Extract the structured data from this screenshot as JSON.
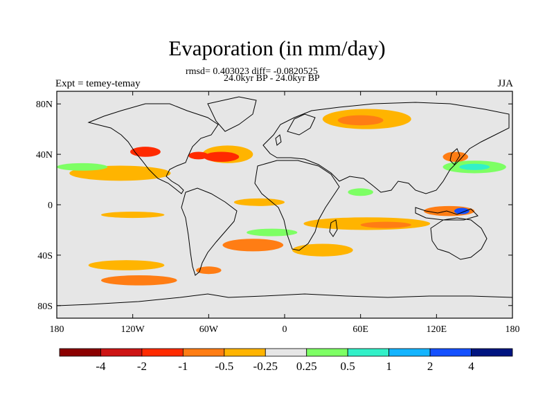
{
  "title": "Evaporation (in mm/day)",
  "stats_line": "rmsd= 0.403023 diff= -0.0820525",
  "period_line": "24.0kyr BP - 24.0kyr BP",
  "left_label": "Expt = temey-temay",
  "right_label": "JJA",
  "map": {
    "projection": "cylindrical equidistant",
    "lon_range": [
      -180,
      180
    ],
    "lat_range": [
      -90,
      90
    ],
    "background": "#e6e6e6",
    "coastline_color": "#000000",
    "lon_ticks": [
      "180",
      "120W",
      "60W",
      "0",
      "60E",
      "120E",
      "180"
    ],
    "lat_ticks": [
      "80N",
      "40N",
      "0",
      "40S",
      "80S"
    ]
  },
  "colorbar": {
    "colors": [
      "#8b0000",
      "#cd1414",
      "#ff2a00",
      "#ff7d14",
      "#ffb400",
      "#e6e6e6",
      "#7dff64",
      "#32f0c8",
      "#14b4ff",
      "#1450ff",
      "#001480"
    ],
    "labels": [
      "-4",
      "-2",
      "-1",
      "-0.5",
      "-0.25",
      "0.25",
      "0.5",
      "1",
      "2",
      "4"
    ]
  },
  "anomaly_regions": [
    {
      "name": "north-atlantic",
      "lon": -45,
      "lat": 40,
      "rx": 20,
      "ry": 7,
      "color": "#ffb400"
    },
    {
      "name": "north-atlantic-core",
      "lon": -50,
      "lat": 38,
      "rx": 14,
      "ry": 4,
      "color": "#ff2a00"
    },
    {
      "name": "gulf-stream",
      "lon": -68,
      "lat": 39,
      "rx": 8,
      "ry": 3,
      "color": "#ff2a00"
    },
    {
      "name": "nordic-seas",
      "lon": 65,
      "lat": 68,
      "rx": 35,
      "ry": 8,
      "color": "#ffb400"
    },
    {
      "name": "nordic-core",
      "lon": 60,
      "lat": 67,
      "rx": 18,
      "ry": 4,
      "color": "#ff7d14"
    },
    {
      "name": "ne-pacific",
      "lon": -130,
      "lat": 25,
      "rx": 40,
      "ry": 6,
      "color": "#ffb400"
    },
    {
      "name": "pacific-nw",
      "lon": -110,
      "lat": 42,
      "rx": 12,
      "ry": 4,
      "color": "#ff2a00"
    },
    {
      "name": "sw-pacific",
      "lon": -125,
      "lat": -48,
      "rx": 30,
      "ry": 4,
      "color": "#ffb400"
    },
    {
      "name": "south-pacific-band",
      "lon": -115,
      "lat": -60,
      "rx": 30,
      "ry": 4,
      "color": "#ff7d14"
    },
    {
      "name": "south-atlantic",
      "lon": -25,
      "lat": -32,
      "rx": 24,
      "ry": 5,
      "color": "#ff7d14"
    },
    {
      "name": "agulhas",
      "lon": 30,
      "lat": -36,
      "rx": 24,
      "ry": 5,
      "color": "#ffb400"
    },
    {
      "name": "indian-ocean",
      "lon": 65,
      "lat": -15,
      "rx": 50,
      "ry": 5,
      "color": "#ffb400"
    },
    {
      "name": "indian-core",
      "lon": 80,
      "lat": -16,
      "rx": 20,
      "ry": 2.5,
      "color": "#ff7d14"
    },
    {
      "name": "nw-pacific-green",
      "lon": 150,
      "lat": 30,
      "rx": 25,
      "ry": 5,
      "color": "#7dff64"
    },
    {
      "name": "nw-pacific-cyan",
      "lon": 150,
      "lat": 30,
      "rx": 12,
      "ry": 2.5,
      "color": "#32f0c8"
    },
    {
      "name": "north-pacific-east",
      "lon": -160,
      "lat": 30,
      "rx": 20,
      "ry": 3,
      "color": "#7dff64"
    },
    {
      "name": "equatorial-atlantic",
      "lon": -20,
      "lat": 2,
      "rx": 20,
      "ry": 3,
      "color": "#ffb400"
    },
    {
      "name": "tropical-pacific",
      "lon": -120,
      "lat": -8,
      "rx": 25,
      "ry": 2.5,
      "color": "#ffb400"
    },
    {
      "name": "maritime-continent",
      "lon": 130,
      "lat": -5,
      "rx": 20,
      "ry": 4,
      "color": "#ff7d14"
    },
    {
      "name": "maritime-blue",
      "lon": 140,
      "lat": -5,
      "rx": 6,
      "ry": 2.5,
      "color": "#1450ff"
    },
    {
      "name": "south-atlantic-green",
      "lon": -10,
      "lat": -22,
      "rx": 20,
      "ry": 3,
      "color": "#7dff64"
    },
    {
      "name": "arabian-green",
      "lon": 60,
      "lat": 10,
      "rx": 10,
      "ry": 3,
      "color": "#7dff64"
    },
    {
      "name": "patagonia",
      "lon": -60,
      "lat": -52,
      "rx": 10,
      "ry": 3,
      "color": "#ff7d14"
    },
    {
      "name": "east-asia",
      "lon": 135,
      "lat": 38,
      "rx": 10,
      "ry": 4,
      "color": "#ff7d14"
    }
  ]
}
